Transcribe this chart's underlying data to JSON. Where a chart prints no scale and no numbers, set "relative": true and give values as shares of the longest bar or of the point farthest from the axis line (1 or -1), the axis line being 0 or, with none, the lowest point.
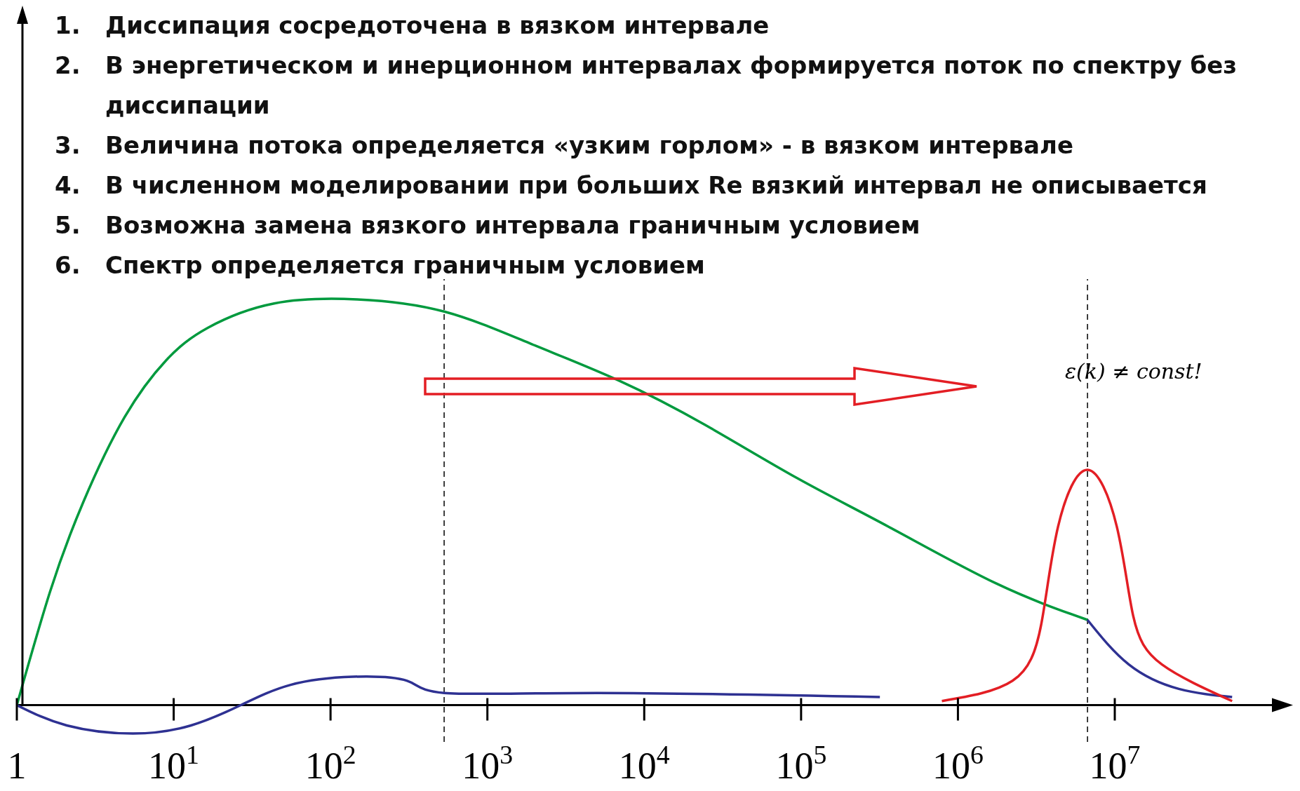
{
  "chart_data": {
    "type": "line",
    "relative": true,
    "log": "x",
    "xlim": [
      1,
      126000000
    ],
    "xticks": [
      {
        "value": 1,
        "label": "1"
      },
      {
        "value": 10,
        "label": "10$^{1}$"
      },
      {
        "value": 100,
        "label": "10$^{2}$"
      },
      {
        "value": 1000,
        "label": "10$^{3}$"
      },
      {
        "value": 10000,
        "label": "10$^{4}$"
      },
      {
        "value": 100000,
        "label": "10$^{5}$"
      },
      {
        "value": 1000000,
        "label": "10$^{6}$"
      },
      {
        "value": 10000000,
        "label": "10$^{7}$"
      }
    ],
    "series": [
      {
        "color": "#009a3e",
        "x": [
          1,
          1.63,
          2.65,
          4.87,
          8.96,
          16.5,
          43.7,
          148,
          530,
          1910,
          6880,
          24600,
          93900,
          360000,
          1750000,
          6700000
        ],
        "values": [
          0,
          0.28,
          0.5,
          0.71,
          0.85,
          0.93,
          0.99,
          1,
          0.97,
          0.89,
          0.8,
          0.69,
          0.56,
          0.44,
          0.3,
          0.21
        ]
      },
      {
        "color": "#2e3192",
        "x": [
          1,
          2.08,
          5.5,
          12.9,
          26.8,
          55.7,
          139,
          308,
          530,
          5000,
          318000,
          1000000,
          6700000,
          12300000,
          25600000,
          56000000
        ],
        "values": [
          0,
          -0.05,
          -0.07,
          -0.05,
          0,
          0.05,
          0.07,
          0.06,
          0.03,
          0.03,
          0.02,
          null,
          0.21,
          0.1,
          0.04,
          0.02
        ]
      },
      {
        "color": "#e31e24",
        "x": [
          790000,
          2230000,
          3400000,
          4350000,
          6700000,
          10300000,
          13100000,
          20000000,
          56000000
        ],
        "values": [
          0.01,
          0.06,
          0.2,
          0.44,
          0.58,
          0.44,
          0.22,
          0.1,
          0.01
        ]
      }
    ],
    "ref_lines": [
      {
        "axis": "x",
        "value": 530,
        "color": "#000000",
        "line_style": "dashed"
      },
      {
        "axis": "x",
        "value": 6700000,
        "color": "#000000",
        "line_style": "dashed"
      }
    ],
    "annotations": [
      "1.   Диссипация сосредоточена в вязком интервале",
      "2.   В энергетическом и  инерционном  интервалах формируется поток по спектру без диссипации",
      "3.   Величина потока определяется «узким горлом» - в вязком интервале",
      "4.   В численном моделировании при больших Re вязкий интервал не описывается",
      "5.   Возможна замена вязкого интервала граничным условием",
      "6.   Спектр определяется граничным условием",
      "ε(k) ≠ const!"
    ]
  }
}
